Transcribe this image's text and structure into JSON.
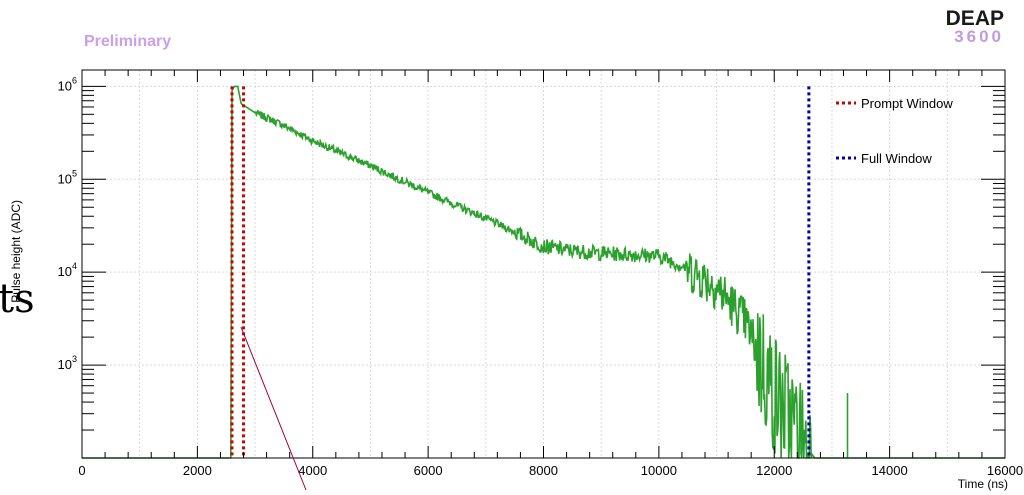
{
  "preliminary_label": "Preliminary",
  "logo": {
    "line1": "DEAP",
    "line2": "3600",
    "line1_color": "#1a1a1a",
    "line2_color": "#c39be0"
  },
  "cutoff_text": "ts",
  "colors": {
    "series": "#2ca02c",
    "prompt": "#cc0000",
    "full": "#0000aa",
    "preliminary": "#c9a0ea",
    "annotation_line": "#a0003a"
  },
  "chart_data": {
    "type": "line",
    "xlabel": "Time (ns)",
    "ylabel": "Pulse height (ADC)",
    "xlim": [
      0,
      16000
    ],
    "ylim": [
      100,
      1500000
    ],
    "y_scale": "log",
    "grid": true,
    "legend_position": "top-right",
    "x_ticks": [
      {
        "value": 0,
        "label": "0"
      },
      {
        "value": 2000,
        "label": "2000"
      },
      {
        "value": 4000,
        "label": "4000"
      },
      {
        "value": 6000,
        "label": "6000"
      },
      {
        "value": 8000,
        "label": "8000"
      },
      {
        "value": 10000,
        "label": "10000"
      },
      {
        "value": 12000,
        "label": "12000"
      },
      {
        "value": 14000,
        "label": "14000"
      },
      {
        "value": 16000,
        "label": "16000"
      }
    ],
    "y_ticks": [
      {
        "value": 1000,
        "base": "10",
        "exp": "3"
      },
      {
        "value": 10000,
        "base": "10",
        "exp": "4"
      },
      {
        "value": 100000,
        "base": "10",
        "exp": "5"
      },
      {
        "value": 1000000,
        "base": "10",
        "exp": "6"
      }
    ],
    "series": [
      {
        "points": [
          [
            0,
            100
          ],
          [
            2580,
            100
          ],
          [
            2600,
            900000
          ],
          [
            2640,
            1000000
          ],
          [
            2700,
            1000000
          ],
          [
            2760,
            650000
          ],
          [
            3000,
            520000
          ],
          [
            3500,
            380000
          ],
          [
            4000,
            260000
          ],
          [
            4500,
            190000
          ],
          [
            5000,
            140000
          ],
          [
            5500,
            100000
          ],
          [
            6000,
            72000
          ],
          [
            6500,
            52000
          ],
          [
            7000,
            38000
          ],
          [
            7500,
            27000
          ],
          [
            8000,
            19000
          ],
          [
            8500,
            17000
          ],
          [
            9000,
            16000
          ],
          [
            9500,
            15500
          ],
          [
            10000,
            15000
          ],
          [
            10500,
            11000
          ],
          [
            11000,
            7000
          ],
          [
            11500,
            3000
          ],
          [
            12000,
            500
          ],
          [
            12500,
            150
          ],
          [
            12700,
            100
          ],
          [
            16000,
            100
          ]
        ],
        "spikes": [
          [
            13270,
            500
          ]
        ]
      }
    ],
    "vlines": [
      {
        "name": "Prompt Window",
        "x": [
          2600,
          2800
        ],
        "style": "dotted"
      },
      {
        "name": "Full Window",
        "x": [
          12600
        ],
        "style": "dotted"
      }
    ],
    "legend": [
      {
        "label": "Prompt Window"
      },
      {
        "label": "Full Window"
      }
    ]
  }
}
